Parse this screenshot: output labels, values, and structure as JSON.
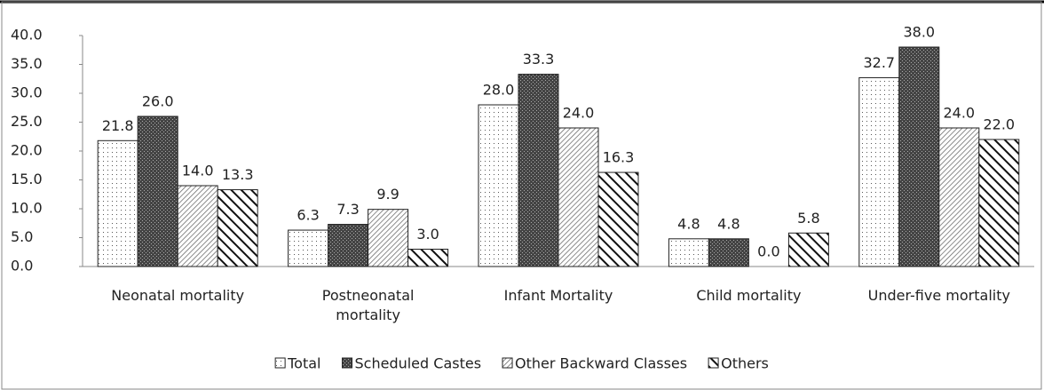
{
  "chart_data": {
    "type": "bar",
    "categories": [
      "Neonatal mortality",
      "Postneonatal mortality",
      "Infant Mortality",
      "Child mortality",
      "Under-five mortality"
    ],
    "series": [
      {
        "name": "Total",
        "pattern": "dots",
        "values": [
          21.8,
          6.3,
          28.0,
          4.8,
          32.7
        ],
        "value_labels": [
          "21.8",
          "6.3",
          "28.0",
          "4.8",
          "32.7"
        ]
      },
      {
        "name": "Scheduled Castes",
        "pattern": "cross",
        "values": [
          26.0,
          7.3,
          33.3,
          4.8,
          38.0
        ],
        "value_labels": [
          "26.0",
          "7.3",
          "33.3",
          "4.8",
          "38.0"
        ]
      },
      {
        "name": "Other Backward Classes",
        "pattern": "thin",
        "values": [
          14.0,
          9.9,
          24.0,
          0.0,
          24.0
        ],
        "value_labels": [
          "14.0",
          "9.9",
          "24.0",
          "0.0",
          "24.0"
        ]
      },
      {
        "name": "Others",
        "pattern": "bold",
        "values": [
          13.3,
          3.0,
          16.3,
          5.8,
          22.0
        ],
        "value_labels": [
          "13.3",
          "3.0",
          "16.3",
          "5.8",
          "22.0"
        ]
      }
    ],
    "ylim": [
      0,
      40
    ],
    "yticks": [
      {
        "value": 0,
        "label": "0.0"
      },
      {
        "value": 5,
        "label": "5.0"
      },
      {
        "value": 10,
        "label": "10.0"
      },
      {
        "value": 15,
        "label": "15.0"
      },
      {
        "value": 20,
        "label": "20.0"
      },
      {
        "value": 25,
        "label": "25.0"
      },
      {
        "value": 30,
        "label": "30.0"
      },
      {
        "value": 35,
        "label": "35.0"
      },
      {
        "value": 40,
        "label": "40.0"
      }
    ],
    "legend": "bottom"
  }
}
